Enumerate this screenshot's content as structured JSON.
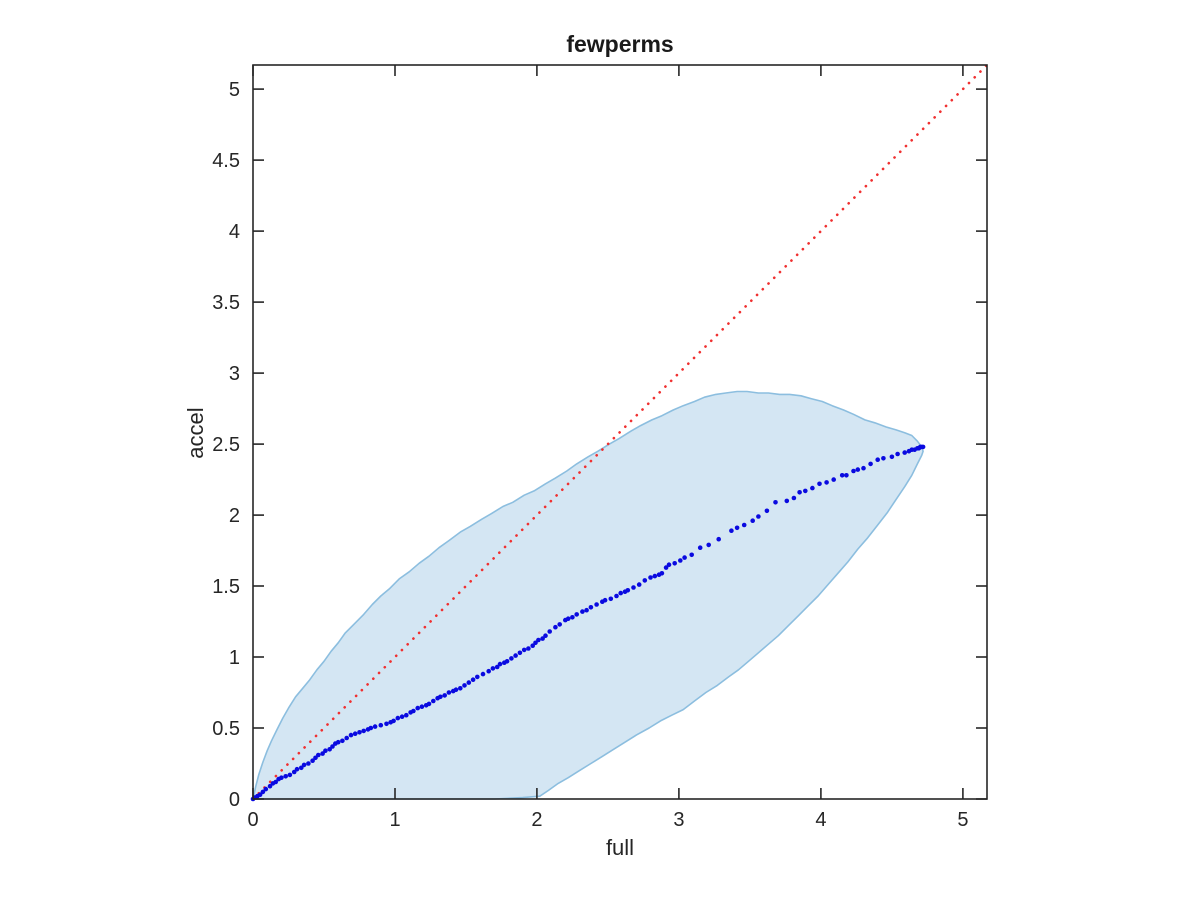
{
  "chart_data": {
    "type": "scatter",
    "title": "fewperms",
    "xlabel": "full",
    "ylabel": "accel",
    "xlim": [
      0,
      5.17
    ],
    "ylim": [
      0,
      5.17
    ],
    "x_ticks": [
      0,
      1,
      2,
      3,
      4,
      5
    ],
    "y_ticks": [
      0,
      0.5,
      1,
      1.5,
      2,
      2.5,
      3,
      3.5,
      4,
      4.5,
      5
    ],
    "grid": false,
    "legend": "none",
    "colors": {
      "identity_line": "#f03030",
      "scatter": "#0a0ae0",
      "envelope_fill": "#d4e6f3",
      "envelope_edge": "#8cbedf",
      "axis": "#262626"
    },
    "identity_line": {
      "style": "dotted",
      "points": [
        [
          0,
          0
        ],
        [
          5.17,
          5.17
        ]
      ]
    },
    "envelope": {
      "style": "filled-region",
      "upper": [
        [
          0.0,
          0.0
        ],
        [
          0.02,
          0.09
        ],
        [
          0.04,
          0.17
        ],
        [
          0.07,
          0.26
        ],
        [
          0.1,
          0.34
        ],
        [
          0.13,
          0.41
        ],
        [
          0.17,
          0.49
        ],
        [
          0.21,
          0.57
        ],
        [
          0.25,
          0.64
        ],
        [
          0.3,
          0.72
        ],
        [
          0.35,
          0.78
        ],
        [
          0.4,
          0.84
        ],
        [
          0.45,
          0.91
        ],
        [
          0.5,
          0.97
        ],
        [
          0.55,
          1.04
        ],
        [
          0.6,
          1.1
        ],
        [
          0.65,
          1.17
        ],
        [
          0.71,
          1.23
        ],
        [
          0.78,
          1.3
        ],
        [
          0.84,
          1.37
        ],
        [
          0.9,
          1.43
        ],
        [
          0.96,
          1.48
        ],
        [
          1.03,
          1.55
        ],
        [
          1.1,
          1.6
        ],
        [
          1.17,
          1.66
        ],
        [
          1.24,
          1.71
        ],
        [
          1.31,
          1.77
        ],
        [
          1.38,
          1.82
        ],
        [
          1.46,
          1.88
        ],
        [
          1.53,
          1.92
        ],
        [
          1.61,
          1.97
        ],
        [
          1.68,
          2.01
        ],
        [
          1.76,
          2.06
        ],
        [
          1.83,
          2.09
        ],
        [
          1.91,
          2.14
        ],
        [
          1.98,
          2.17
        ],
        [
          2.06,
          2.22
        ],
        [
          2.13,
          2.26
        ],
        [
          2.21,
          2.31
        ],
        [
          2.28,
          2.36
        ],
        [
          2.36,
          2.41
        ],
        [
          2.43,
          2.45
        ],
        [
          2.51,
          2.5
        ],
        [
          2.58,
          2.54
        ],
        [
          2.66,
          2.59
        ],
        [
          2.73,
          2.63
        ],
        [
          2.81,
          2.67
        ],
        [
          2.88,
          2.7
        ],
        [
          2.96,
          2.74
        ],
        [
          3.03,
          2.77
        ],
        [
          3.11,
          2.8
        ],
        [
          3.18,
          2.83
        ],
        [
          3.26,
          2.85
        ],
        [
          3.33,
          2.86
        ],
        [
          3.41,
          2.87
        ],
        [
          3.48,
          2.87
        ],
        [
          3.56,
          2.86
        ],
        [
          3.63,
          2.86
        ],
        [
          3.71,
          2.85
        ],
        [
          3.78,
          2.85
        ],
        [
          3.86,
          2.84
        ],
        [
          3.93,
          2.82
        ],
        [
          4.01,
          2.8
        ],
        [
          4.08,
          2.77
        ],
        [
          4.16,
          2.74
        ],
        [
          4.23,
          2.71
        ],
        [
          4.31,
          2.67
        ],
        [
          4.38,
          2.65
        ],
        [
          4.46,
          2.62
        ],
        [
          4.53,
          2.6
        ],
        [
          4.59,
          2.58
        ],
        [
          4.64,
          2.56
        ],
        [
          4.68,
          2.52
        ],
        [
          4.71,
          2.48
        ],
        [
          4.72,
          2.45
        ]
      ],
      "lower": [
        [
          0.0,
          0.0
        ],
        [
          0.6,
          0.0
        ],
        [
          1.2,
          0.0
        ],
        [
          1.7,
          0.0
        ],
        [
          1.9,
          0.01
        ],
        [
          2.02,
          0.02
        ],
        [
          2.08,
          0.06
        ],
        [
          2.15,
          0.11
        ],
        [
          2.22,
          0.15
        ],
        [
          2.3,
          0.2
        ],
        [
          2.38,
          0.25
        ],
        [
          2.46,
          0.3
        ],
        [
          2.54,
          0.35
        ],
        [
          2.62,
          0.4
        ],
        [
          2.7,
          0.45
        ],
        [
          2.79,
          0.5
        ],
        [
          2.87,
          0.55
        ],
        [
          2.95,
          0.59
        ],
        [
          3.03,
          0.63
        ],
        [
          3.11,
          0.69
        ],
        [
          3.19,
          0.75
        ],
        [
          3.27,
          0.8
        ],
        [
          3.35,
          0.86
        ],
        [
          3.42,
          0.91
        ],
        [
          3.49,
          0.97
        ],
        [
          3.56,
          1.03
        ],
        [
          3.63,
          1.09
        ],
        [
          3.7,
          1.15
        ],
        [
          3.77,
          1.22
        ],
        [
          3.84,
          1.29
        ],
        [
          3.91,
          1.36
        ],
        [
          3.98,
          1.43
        ],
        [
          4.05,
          1.51
        ],
        [
          4.12,
          1.59
        ],
        [
          4.19,
          1.67
        ],
        [
          4.26,
          1.76
        ],
        [
          4.33,
          1.84
        ],
        [
          4.4,
          1.93
        ],
        [
          4.47,
          2.02
        ],
        [
          4.53,
          2.11
        ],
        [
          4.59,
          2.2
        ],
        [
          4.64,
          2.28
        ],
        [
          4.68,
          2.36
        ],
        [
          4.71,
          2.42
        ],
        [
          4.72,
          2.45
        ]
      ]
    },
    "scatter_points": [
      [
        0.0,
        0.0
      ],
      [
        0.01,
        0.01
      ],
      [
        0.03,
        0.02
      ],
      [
        0.05,
        0.03
      ],
      [
        0.07,
        0.05
      ],
      [
        0.09,
        0.07
      ],
      [
        0.12,
        0.09
      ],
      [
        0.14,
        0.11
      ],
      [
        0.16,
        0.12
      ],
      [
        0.18,
        0.14
      ],
      [
        0.2,
        0.15
      ],
      [
        0.23,
        0.16
      ],
      [
        0.26,
        0.17
      ],
      [
        0.29,
        0.19
      ],
      [
        0.31,
        0.21
      ],
      [
        0.34,
        0.22
      ],
      [
        0.36,
        0.24
      ],
      [
        0.39,
        0.25
      ],
      [
        0.42,
        0.27
      ],
      [
        0.44,
        0.29
      ],
      [
        0.46,
        0.31
      ],
      [
        0.49,
        0.32
      ],
      [
        0.51,
        0.34
      ],
      [
        0.54,
        0.35
      ],
      [
        0.56,
        0.37
      ],
      [
        0.58,
        0.39
      ],
      [
        0.6,
        0.4
      ],
      [
        0.63,
        0.41
      ],
      [
        0.66,
        0.43
      ],
      [
        0.69,
        0.45
      ],
      [
        0.72,
        0.46
      ],
      [
        0.75,
        0.47
      ],
      [
        0.78,
        0.48
      ],
      [
        0.81,
        0.49
      ],
      [
        0.83,
        0.5
      ],
      [
        0.86,
        0.51
      ],
      [
        0.9,
        0.52
      ],
      [
        0.94,
        0.53
      ],
      [
        0.97,
        0.54
      ],
      [
        0.99,
        0.55
      ],
      [
        1.02,
        0.57
      ],
      [
        1.05,
        0.58
      ],
      [
        1.08,
        0.59
      ],
      [
        1.11,
        0.61
      ],
      [
        1.13,
        0.62
      ],
      [
        1.16,
        0.64
      ],
      [
        1.19,
        0.65
      ],
      [
        1.22,
        0.66
      ],
      [
        1.24,
        0.67
      ],
      [
        1.27,
        0.69
      ],
      [
        1.3,
        0.71
      ],
      [
        1.32,
        0.72
      ],
      [
        1.35,
        0.73
      ],
      [
        1.38,
        0.75
      ],
      [
        1.41,
        0.76
      ],
      [
        1.43,
        0.77
      ],
      [
        1.46,
        0.78
      ],
      [
        1.49,
        0.8
      ],
      [
        1.52,
        0.82
      ],
      [
        1.55,
        0.84
      ],
      [
        1.58,
        0.86
      ],
      [
        1.62,
        0.88
      ],
      [
        1.66,
        0.9
      ],
      [
        1.69,
        0.92
      ],
      [
        1.72,
        0.93
      ],
      [
        1.74,
        0.95
      ],
      [
        1.77,
        0.96
      ],
      [
        1.79,
        0.97
      ],
      [
        1.82,
        0.99
      ],
      [
        1.85,
        1.01
      ],
      [
        1.88,
        1.03
      ],
      [
        1.91,
        1.05
      ],
      [
        1.94,
        1.06
      ],
      [
        1.97,
        1.08
      ],
      [
        1.99,
        1.1
      ],
      [
        2.01,
        1.12
      ],
      [
        2.04,
        1.13
      ],
      [
        2.06,
        1.15
      ],
      [
        2.09,
        1.18
      ],
      [
        2.13,
        1.21
      ],
      [
        2.16,
        1.23
      ],
      [
        2.2,
        1.26
      ],
      [
        2.22,
        1.27
      ],
      [
        2.25,
        1.28
      ],
      [
        2.28,
        1.3
      ],
      [
        2.32,
        1.32
      ],
      [
        2.35,
        1.33
      ],
      [
        2.38,
        1.35
      ],
      [
        2.42,
        1.37
      ],
      [
        2.46,
        1.39
      ],
      [
        2.48,
        1.4
      ],
      [
        2.52,
        1.41
      ],
      [
        2.56,
        1.43
      ],
      [
        2.59,
        1.45
      ],
      [
        2.62,
        1.46
      ],
      [
        2.64,
        1.47
      ],
      [
        2.68,
        1.49
      ],
      [
        2.72,
        1.51
      ],
      [
        2.76,
        1.54
      ],
      [
        2.8,
        1.56
      ],
      [
        2.83,
        1.57
      ],
      [
        2.86,
        1.58
      ],
      [
        2.88,
        1.59
      ],
      [
        2.91,
        1.63
      ],
      [
        2.93,
        1.65
      ],
      [
        2.97,
        1.66
      ],
      [
        3.01,
        1.68
      ],
      [
        3.04,
        1.7
      ],
      [
        3.09,
        1.72
      ],
      [
        3.15,
        1.77
      ],
      [
        3.21,
        1.79
      ],
      [
        3.28,
        1.83
      ],
      [
        3.37,
        1.89
      ],
      [
        3.41,
        1.91
      ],
      [
        3.46,
        1.93
      ],
      [
        3.52,
        1.96
      ],
      [
        3.56,
        1.99
      ],
      [
        3.62,
        2.03
      ],
      [
        3.68,
        2.09
      ],
      [
        3.76,
        2.1
      ],
      [
        3.81,
        2.12
      ],
      [
        3.85,
        2.16
      ],
      [
        3.89,
        2.17
      ],
      [
        3.94,
        2.19
      ],
      [
        3.99,
        2.22
      ],
      [
        4.04,
        2.23
      ],
      [
        4.09,
        2.25
      ],
      [
        4.15,
        2.28
      ],
      [
        4.18,
        2.28
      ],
      [
        4.23,
        2.31
      ],
      [
        4.26,
        2.32
      ],
      [
        4.3,
        2.33
      ],
      [
        4.35,
        2.36
      ],
      [
        4.4,
        2.39
      ],
      [
        4.44,
        2.4
      ],
      [
        4.5,
        2.41
      ],
      [
        4.54,
        2.43
      ],
      [
        4.59,
        2.44
      ],
      [
        4.62,
        2.45
      ],
      [
        4.64,
        2.46
      ],
      [
        4.66,
        2.46
      ],
      [
        4.68,
        2.47
      ],
      [
        4.69,
        2.47
      ],
      [
        4.7,
        2.48
      ],
      [
        4.71,
        2.48
      ],
      [
        4.72,
        2.48
      ]
    ]
  }
}
